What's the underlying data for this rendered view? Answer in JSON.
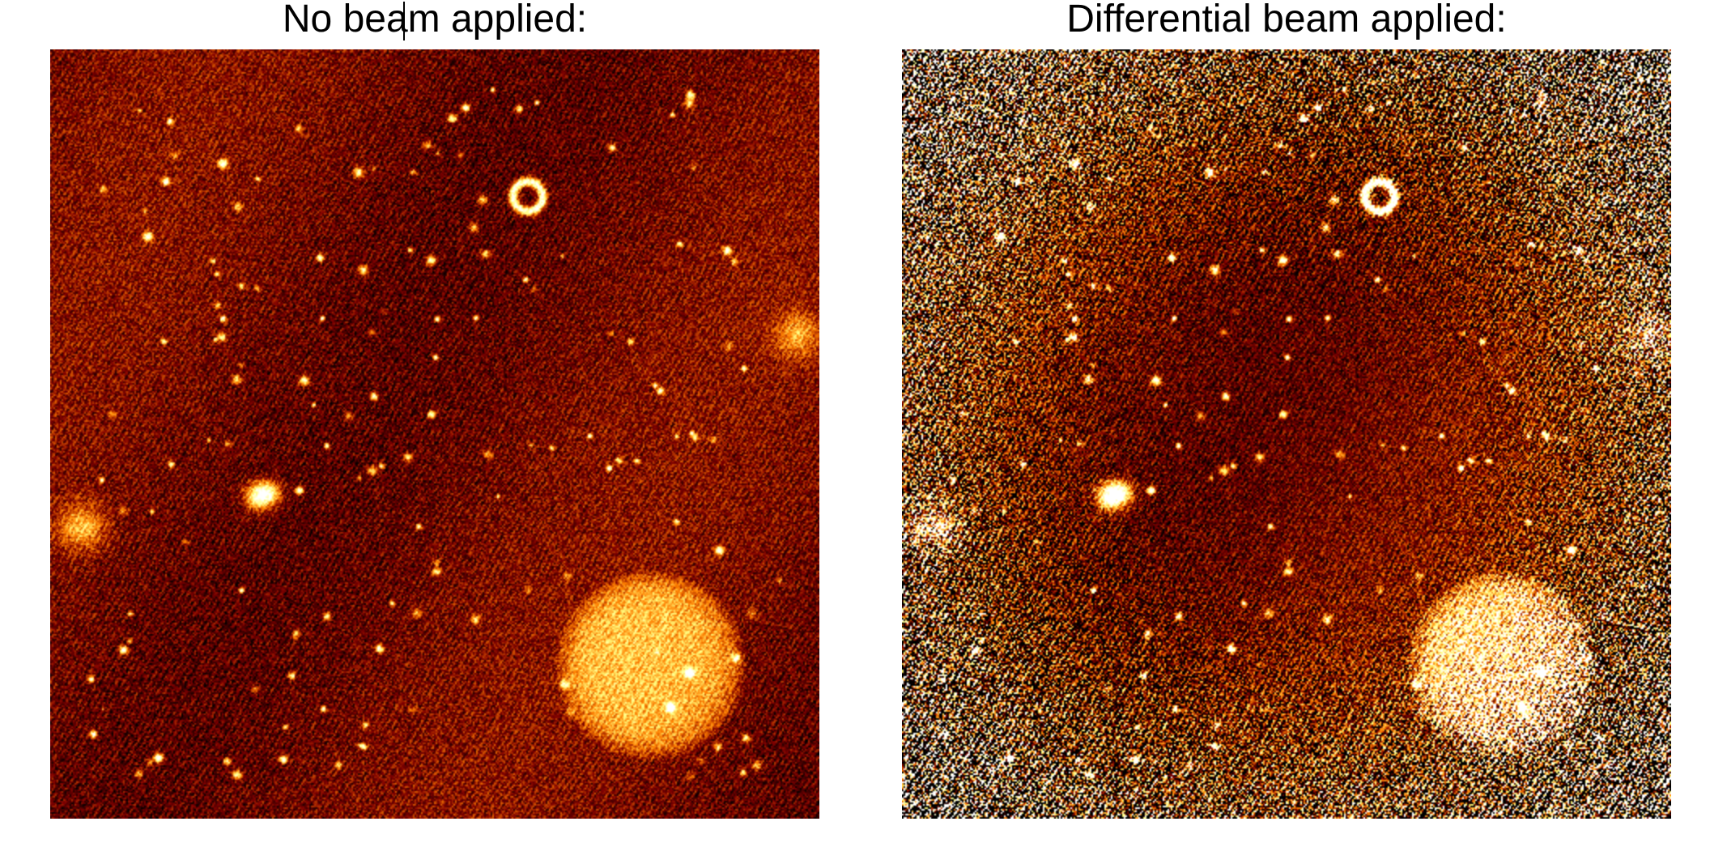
{
  "panels": [
    {
      "title": "No beam applied:",
      "image": "radio-sky-map",
      "rendering": "hot-colormap-uniform-noise"
    },
    {
      "title": "Differential beam applied:",
      "image": "radio-sky-map",
      "rendering": "hot-colormap-noise-increasing-toward-edges"
    }
  ],
  "colors": {
    "background": "#ffffff",
    "colormap": "afmhot",
    "text": "#000000"
  }
}
